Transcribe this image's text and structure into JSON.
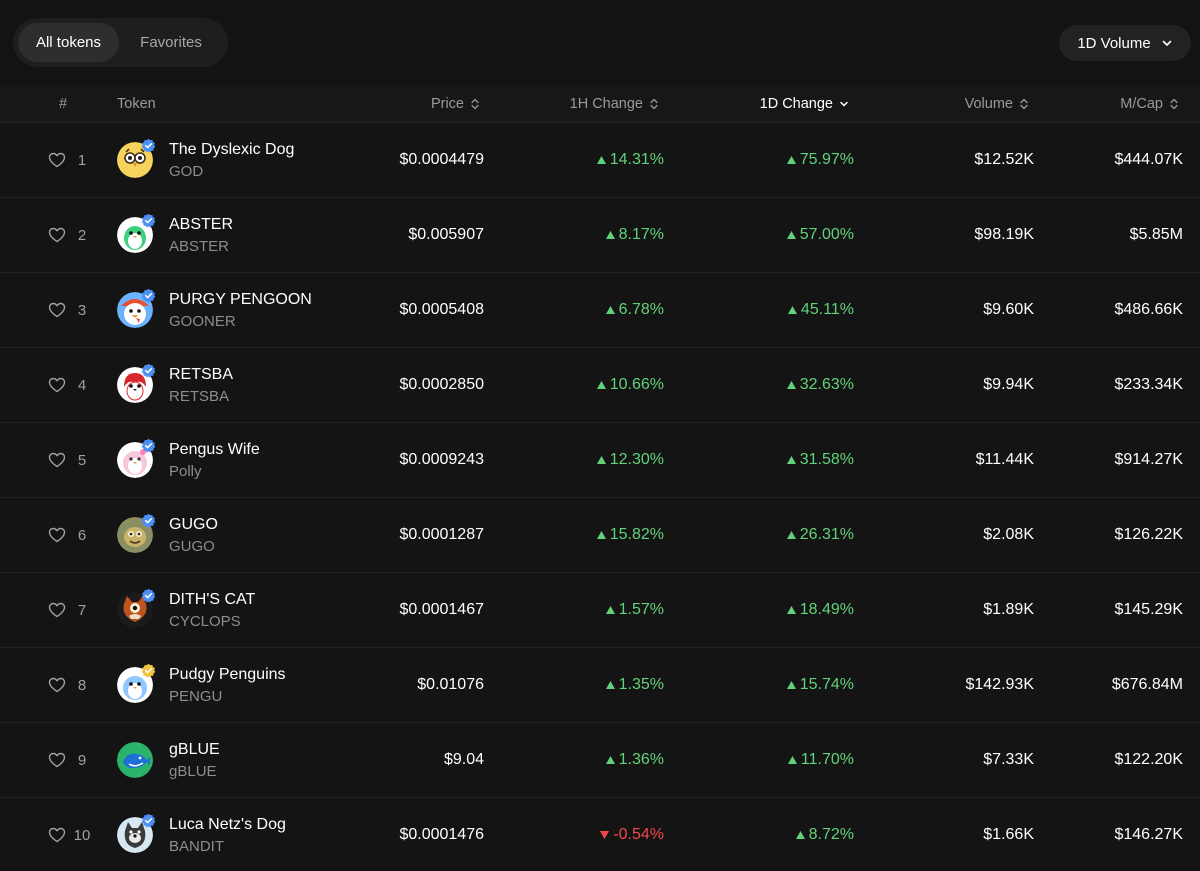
{
  "tabs": [
    {
      "label": "All tokens",
      "active": true
    },
    {
      "label": "Favorites",
      "active": false
    }
  ],
  "volume_select": {
    "label": "1D Volume",
    "icon": "chevron-down-icon"
  },
  "columns": {
    "rank": "#",
    "token": "Token",
    "price": "Price",
    "change_1h": "1H Change",
    "change_1d": "1D Change",
    "volume": "Volume",
    "mcap": "M/Cap"
  },
  "colors": {
    "up": "#62d27a",
    "down": "#f2464b",
    "verified_blue": "#4c8ff5",
    "verified_gold": "#f0c43c"
  },
  "rows": [
    {
      "rank": "1",
      "name": "The Dyslexic Dog",
      "symbol": "GOD",
      "price": "$0.0004479",
      "change_1h": "14.31%",
      "dir_1h": "up",
      "change_1d": "75.97%",
      "dir_1d": "up",
      "volume": "$12.52K",
      "mcap": "$444.07K",
      "avatar": "owl-icon",
      "badge": "blue"
    },
    {
      "rank": "2",
      "name": "ABSTER",
      "symbol": "ABSTER",
      "price": "$0.005907",
      "change_1h": "8.17%",
      "dir_1h": "up",
      "change_1d": "57.00%",
      "dir_1d": "up",
      "volume": "$98.19K",
      "mcap": "$5.85M",
      "avatar": "green-penguin-icon",
      "badge": "blue"
    },
    {
      "rank": "3",
      "name": "PURGY PENGOON",
      "symbol": "GOONER",
      "price": "$0.0005408",
      "change_1h": "6.78%",
      "dir_1h": "up",
      "change_1d": "45.11%",
      "dir_1d": "up",
      "volume": "$9.60K",
      "mcap": "$486.66K",
      "avatar": "capped-penguin-icon",
      "badge": "blue"
    },
    {
      "rank": "4",
      "name": "RETSBA",
      "symbol": "RETSBA",
      "price": "$0.0002850",
      "change_1h": "10.66%",
      "dir_1h": "up",
      "change_1d": "32.63%",
      "dir_1d": "up",
      "volume": "$9.94K",
      "mcap": "$233.34K",
      "avatar": "red-penguin-icon",
      "badge": "blue"
    },
    {
      "rank": "5",
      "name": "Pengus Wife",
      "symbol": "Polly",
      "price": "$0.0009243",
      "change_1h": "12.30%",
      "dir_1h": "up",
      "change_1d": "31.58%",
      "dir_1d": "up",
      "volume": "$11.44K",
      "mcap": "$914.27K",
      "avatar": "pink-penguin-icon",
      "badge": "blue"
    },
    {
      "rank": "6",
      "name": "GUGO",
      "symbol": "GUGO",
      "price": "$0.0001287",
      "change_1h": "15.82%",
      "dir_1h": "up",
      "change_1d": "26.31%",
      "dir_1d": "up",
      "volume": "$2.08K",
      "mcap": "$126.22K",
      "avatar": "gugo-icon",
      "badge": "blue"
    },
    {
      "rank": "7",
      "name": "DITH'S CAT",
      "symbol": "CYCLOPS",
      "price": "$0.0001467",
      "change_1h": "1.57%",
      "dir_1h": "up",
      "change_1d": "18.49%",
      "dir_1d": "up",
      "volume": "$1.89K",
      "mcap": "$145.29K",
      "avatar": "cyclops-cat-icon",
      "badge": "blue"
    },
    {
      "rank": "8",
      "name": "Pudgy Penguins",
      "symbol": "PENGU",
      "price": "$0.01076",
      "change_1h": "1.35%",
      "dir_1h": "up",
      "change_1d": "15.74%",
      "dir_1d": "up",
      "volume": "$142.93K",
      "mcap": "$676.84M",
      "avatar": "blue-penguin-icon",
      "badge": "gold"
    },
    {
      "rank": "9",
      "name": "gBLUE",
      "symbol": "gBLUE",
      "price": "$9.04",
      "change_1h": "1.36%",
      "dir_1h": "up",
      "change_1d": "11.70%",
      "dir_1d": "up",
      "volume": "$7.33K",
      "mcap": "$122.20K",
      "avatar": "whale-icon",
      "badge": "none"
    },
    {
      "rank": "10",
      "name": "Luca Netz's Dog",
      "symbol": "BANDIT",
      "price": "$0.0001476",
      "change_1h": "-0.54%",
      "dir_1h": "down",
      "change_1d": "8.72%",
      "dir_1d": "up",
      "volume": "$1.66K",
      "mcap": "$146.27K",
      "avatar": "dog-icon",
      "badge": "blue"
    }
  ]
}
